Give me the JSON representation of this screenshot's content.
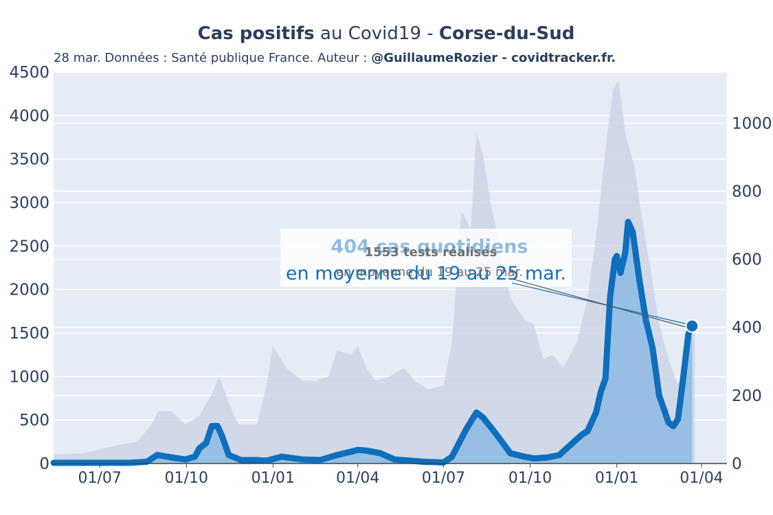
{
  "title": {
    "part1": "Cas positifs",
    "part2": " au Covid19 - ",
    "part3": "Corse-du-Sud"
  },
  "subtitle": {
    "text": "28 mar. Données : Santé publique France. Auteur : ",
    "author": "@GuillaumeRozier - covidtracker.fr."
  },
  "annotation": {
    "cases_line1": "404 cas quotidiens",
    "cases_line2": "en moyenne du 19 au 25 mar.",
    "tests_line1": "1553 tests réalisés",
    "tests_line2": "en moyenne du 19 au 25 mar."
  },
  "colors": {
    "cases_line": "#0e6fbd",
    "cases_fill": "#8fbde2",
    "tests_fill": "#c9d2e2",
    "plot_bg": "#e5ecf6",
    "grid": "#ffffff",
    "annotation_cases_text": "#0e6fbd",
    "annotation_cases_text_light": "#8fbde2",
    "annotation_tests_text": "#707070"
  },
  "chart_data": {
    "type": "line",
    "x_tick_labels": [
      "01/07",
      "01/10",
      "01/01",
      "01/04",
      "01/07",
      "01/10",
      "01/01",
      "01/04"
    ],
    "x_tick_dates": [
      "2020-07-01",
      "2020-10-01",
      "2021-01-01",
      "2021-04-01",
      "2021-07-01",
      "2021-10-01",
      "2022-01-01",
      "2022-04-01"
    ],
    "xlim": [
      "2020-05-13",
      "2022-04-28"
    ],
    "y_left": {
      "ticks": [
        0,
        500,
        1000,
        1500,
        2000,
        2500,
        3000,
        3500,
        4000,
        4500
      ],
      "ylim": [
        0,
        4500
      ]
    },
    "y_right": {
      "ticks": [
        0,
        200,
        400,
        600,
        800,
        1000
      ],
      "ylim": [
        0,
        1150
      ]
    },
    "grid": true,
    "series": [
      {
        "axis": "left",
        "points": [
          [
            "2020-05-13",
            100
          ],
          [
            "2020-06-15",
            120
          ],
          [
            "2020-07-15",
            200
          ],
          [
            "2020-08-10",
            250
          ],
          [
            "2020-08-25",
            450
          ],
          [
            "2020-09-01",
            600
          ],
          [
            "2020-09-15",
            600
          ],
          [
            "2020-09-30",
            450
          ],
          [
            "2020-10-15",
            550
          ],
          [
            "2020-10-28",
            800
          ],
          [
            "2020-11-05",
            1000
          ],
          [
            "2020-11-15",
            700
          ],
          [
            "2020-11-25",
            450
          ],
          [
            "2020-12-15",
            450
          ],
          [
            "2020-12-25",
            900
          ],
          [
            "2021-01-01",
            1350
          ],
          [
            "2021-01-15",
            1100
          ],
          [
            "2021-02-01",
            950
          ],
          [
            "2021-02-15",
            950
          ],
          [
            "2021-03-01",
            1000
          ],
          [
            "2021-03-10",
            1300
          ],
          [
            "2021-03-25",
            1250
          ],
          [
            "2021-04-01",
            1350
          ],
          [
            "2021-04-10",
            1100
          ],
          [
            "2021-04-20",
            950
          ],
          [
            "2021-05-05",
            1000
          ],
          [
            "2021-05-20",
            1100
          ],
          [
            "2021-06-01",
            950
          ],
          [
            "2021-06-15",
            850
          ],
          [
            "2021-07-01",
            900
          ],
          [
            "2021-07-10",
            1400
          ],
          [
            "2021-07-20",
            2900
          ],
          [
            "2021-07-30",
            2700
          ],
          [
            "2021-08-05",
            3800
          ],
          [
            "2021-08-12",
            3550
          ],
          [
            "2021-08-20",
            3000
          ],
          [
            "2021-09-01",
            2400
          ],
          [
            "2021-09-10",
            1900
          ],
          [
            "2021-09-25",
            1650
          ],
          [
            "2021-10-05",
            1600
          ],
          [
            "2021-10-15",
            1200
          ],
          [
            "2021-10-25",
            1250
          ],
          [
            "2021-11-05",
            1100
          ],
          [
            "2021-11-20",
            1400
          ],
          [
            "2021-12-01",
            1900
          ],
          [
            "2021-12-10",
            2600
          ],
          [
            "2021-12-20",
            3600
          ],
          [
            "2021-12-28",
            4300
          ],
          [
            "2022-01-03",
            4400
          ],
          [
            "2022-01-10",
            3800
          ],
          [
            "2022-01-20",
            3400
          ],
          [
            "2022-01-28",
            2800
          ],
          [
            "2022-02-05",
            2300
          ],
          [
            "2022-02-15",
            1600
          ],
          [
            "2022-02-25",
            1200
          ],
          [
            "2022-03-05",
            950
          ],
          [
            "2022-03-15",
            850
          ],
          [
            "2022-03-22",
            1450
          ],
          [
            "2022-03-25",
            1553
          ]
        ]
      },
      {
        "axis": "right",
        "points": [
          [
            "2020-05-13",
            2
          ],
          [
            "2020-07-01",
            2
          ],
          [
            "2020-08-01",
            2
          ],
          [
            "2020-08-20",
            5
          ],
          [
            "2020-08-31",
            25
          ],
          [
            "2020-09-15",
            18
          ],
          [
            "2020-09-30",
            12
          ],
          [
            "2020-10-10",
            20
          ],
          [
            "2020-10-15",
            45
          ],
          [
            "2020-10-22",
            60
          ],
          [
            "2020-10-28",
            110
          ],
          [
            "2020-11-03",
            110
          ],
          [
            "2020-11-08",
            80
          ],
          [
            "2020-11-15",
            25
          ],
          [
            "2020-11-28",
            10
          ],
          [
            "2020-12-15",
            10
          ],
          [
            "2020-12-25",
            8
          ],
          [
            "2021-01-10",
            20
          ],
          [
            "2021-02-01",
            12
          ],
          [
            "2021-02-20",
            10
          ],
          [
            "2021-03-10",
            25
          ],
          [
            "2021-03-25",
            35
          ],
          [
            "2021-04-01",
            40
          ],
          [
            "2021-04-10",
            38
          ],
          [
            "2021-04-25",
            30
          ],
          [
            "2021-05-10",
            12
          ],
          [
            "2021-06-10",
            5
          ],
          [
            "2021-07-01",
            3
          ],
          [
            "2021-07-10",
            20
          ],
          [
            "2021-07-25",
            100
          ],
          [
            "2021-08-05",
            150
          ],
          [
            "2021-08-12",
            135
          ],
          [
            "2021-08-25",
            90
          ],
          [
            "2021-09-10",
            30
          ],
          [
            "2021-09-25",
            20
          ],
          [
            "2021-10-05",
            15
          ],
          [
            "2021-10-20",
            18
          ],
          [
            "2021-11-01",
            25
          ],
          [
            "2021-11-15",
            60
          ],
          [
            "2021-11-25",
            85
          ],
          [
            "2021-12-01",
            95
          ],
          [
            "2021-12-10",
            150
          ],
          [
            "2021-12-15",
            210
          ],
          [
            "2021-12-20",
            250
          ],
          [
            "2021-12-25",
            490
          ],
          [
            "2021-12-30",
            600
          ],
          [
            "2022-01-01",
            610
          ],
          [
            "2022-01-05",
            560
          ],
          [
            "2022-01-10",
            620
          ],
          [
            "2022-01-13",
            710
          ],
          [
            "2022-01-18",
            680
          ],
          [
            "2022-01-25",
            540
          ],
          [
            "2022-02-01",
            420
          ],
          [
            "2022-02-08",
            340
          ],
          [
            "2022-02-15",
            200
          ],
          [
            "2022-02-20",
            160
          ],
          [
            "2022-02-25",
            120
          ],
          [
            "2022-03-02",
            110
          ],
          [
            "2022-03-07",
            130
          ],
          [
            "2022-03-12",
            240
          ],
          [
            "2022-03-18",
            380
          ],
          [
            "2022-03-22",
            404
          ]
        ]
      }
    ],
    "highlight_point": {
      "axis": "right",
      "x": "2022-03-22",
      "y": 404
    }
  }
}
